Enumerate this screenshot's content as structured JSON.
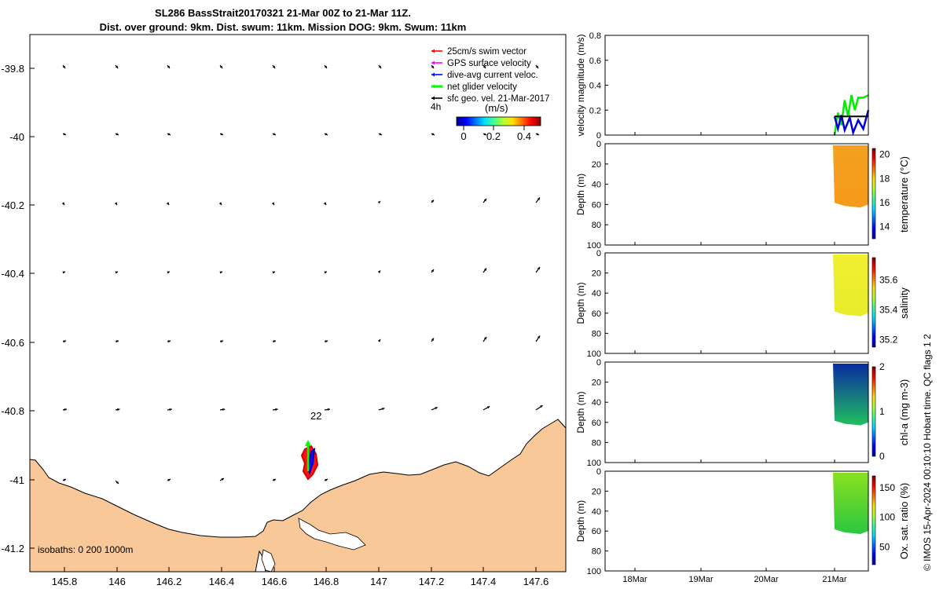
{
  "header": {
    "title_line1": "SL286 BassStrait20170321 21-Mar 00Z to 21-Mar 11Z.",
    "title_line2": "Dist. over ground: 9km. Dist. swum: 11km. Mission DOG: 9km. Swum: 11km"
  },
  "map": {
    "x_ticks": [
      "145.8",
      "146",
      "146.2",
      "146.4",
      "146.6",
      "146.8",
      "147",
      "147.2",
      "147.4",
      "147.6"
    ],
    "y_ticks": [
      "-39.8",
      "-40",
      "-40.2",
      "-40.4",
      "-40.6",
      "-40.8",
      "-41",
      "-41.2"
    ],
    "legend": {
      "items": [
        {
          "label": "25cm/s swim vector",
          "color": "#ff0000"
        },
        {
          "label": "GPS surface velocity",
          "color": "#ff00ff"
        },
        {
          "label": "dive-avg current veloc.",
          "color": "#0000ff"
        },
        {
          "label": "net glider velocity",
          "color": "#00ff00"
        },
        {
          "label": "sfc geo. vel. 21-Mar-2017",
          "color": "#000000"
        }
      ],
      "time_label": "4h"
    },
    "colorbar": {
      "label": "(m/s)",
      "ticks": [
        "0",
        "0.2",
        "0.4"
      ]
    },
    "day_marker": "22",
    "isobaths": "isobaths: 0   200  1000m",
    "land_color": "#f8c898"
  },
  "chart_data": [
    {
      "type": "line",
      "name": "velocity",
      "ylabel": "velocity magnitude (m/s)",
      "ylim": [
        0,
        0.8
      ],
      "y_ticks": [
        "0",
        "0.2",
        "0.4",
        "0.6",
        "0.8"
      ],
      "series": [
        {
          "name": "net glider velocity",
          "color": "#00ee00",
          "points": [
            [
              0,
              0
            ],
            [
              0.1,
              0.18
            ],
            [
              0.2,
              0.08
            ],
            [
              0.3,
              0.28
            ],
            [
              0.4,
              0.15
            ],
            [
              0.5,
              0.32
            ],
            [
              0.6,
              0.2
            ],
            [
              0.7,
              0.3
            ],
            [
              0.85,
              0.3
            ],
            [
              1,
              0.32
            ]
          ]
        },
        {
          "name": "dive-avg current veloc.",
          "color": "#0000dd",
          "points": [
            [
              0,
              0.15
            ],
            [
              0.1,
              0.05
            ],
            [
              0.2,
              0.16
            ],
            [
              0.3,
              0.04
            ],
            [
              0.45,
              0.14
            ],
            [
              0.55,
              0.02
            ],
            [
              0.7,
              0.12
            ],
            [
              0.85,
              0.05
            ],
            [
              1,
              0.2
            ]
          ]
        },
        {
          "name": "sfc geo. vel.",
          "color": "#000000",
          "points": [
            [
              0,
              0.15
            ],
            [
              1,
              0.15
            ]
          ]
        }
      ]
    },
    {
      "type": "heatmap",
      "name": "temperature",
      "ylabel": "Depth (m)",
      "clabel": "temperature (°C)",
      "y_ticks": [
        "0",
        "20",
        "40",
        "60",
        "80",
        "100"
      ],
      "cticks": [
        "20",
        "18",
        "16",
        "14"
      ],
      "clim": [
        13,
        20.5
      ],
      "fill_top": "#f5a020",
      "fill_bottom": "#f59a1a"
    },
    {
      "type": "heatmap",
      "name": "salinity",
      "ylabel": "Depth (m)",
      "clabel": "salinity",
      "y_ticks": [
        "0",
        "20",
        "40",
        "60",
        "80",
        "100"
      ],
      "cticks": [
        "35.6",
        "35.4",
        "35.2"
      ],
      "clim": [
        35.15,
        35.75
      ],
      "fill_top": "#f0f030",
      "fill_bottom": "#e8ec2a"
    },
    {
      "type": "heatmap",
      "name": "chl-a",
      "ylabel": "Depth (m)",
      "clabel": "chl-a (mg m-3)",
      "y_ticks": [
        "0",
        "20",
        "40",
        "60",
        "80",
        "100"
      ],
      "cticks": [
        "2",
        "1",
        "0"
      ],
      "clim": [
        0,
        2
      ],
      "fill_top": "#0a2aa0",
      "fill_bottom": "#20c060"
    },
    {
      "type": "heatmap",
      "name": "oxygen",
      "ylabel": "Depth (m)",
      "clabel": "Ox. sat. ratio (%)",
      "y_ticks": [
        "0",
        "20",
        "40",
        "60",
        "80",
        "100"
      ],
      "cticks": [
        "150",
        "100",
        "50"
      ],
      "clim": [
        20,
        170
      ],
      "fill_top": "#8ae020",
      "fill_bottom": "#2ac840"
    }
  ],
  "time_axis": {
    "ticks": [
      "18Mar",
      "19Mar",
      "20Mar",
      "21Mar"
    ]
  },
  "footer": {
    "credit": "© IMOS 15-Apr-2024 00:10:10 Hobart time. QC flags 1  2"
  }
}
